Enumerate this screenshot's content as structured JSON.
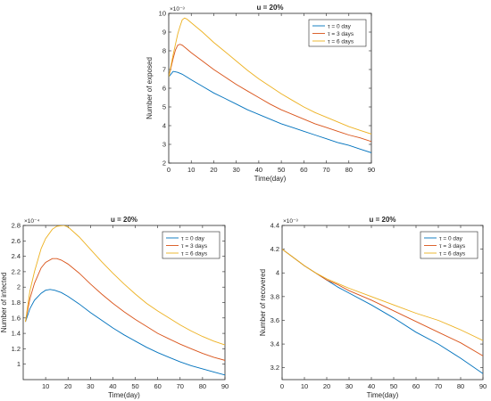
{
  "chart_data": [
    {
      "type": "line",
      "title": "u = 20%",
      "xlabel": "Time(day)",
      "ylabel": "Number of exposed",
      "exponent": "×10⁻³",
      "xlim": [
        0,
        90
      ],
      "ylim": [
        2,
        10
      ],
      "xticks": [
        "0",
        "10",
        "20",
        "30",
        "40",
        "50",
        "60",
        "70",
        "80",
        "90"
      ],
      "yticks": [
        "2",
        "3",
        "4",
        "5",
        "6",
        "7",
        "8",
        "9",
        "10"
      ],
      "legend_position": "top-right",
      "series": [
        {
          "name": "τ = 0 day",
          "color": "#0072BD",
          "x": [
            0,
            2,
            4,
            6,
            8,
            10,
            15,
            20,
            25,
            30,
            35,
            40,
            45,
            50,
            55,
            60,
            65,
            70,
            75,
            80,
            85,
            90
          ],
          "y": [
            6.6,
            6.9,
            6.85,
            6.75,
            6.6,
            6.45,
            6.1,
            5.75,
            5.45,
            5.15,
            4.85,
            4.6,
            4.35,
            4.1,
            3.9,
            3.7,
            3.5,
            3.3,
            3.1,
            2.95,
            2.75,
            2.55
          ]
        },
        {
          "name": "τ = 3 days",
          "color": "#D95319",
          "x": [
            0,
            2,
            3,
            4,
            5,
            6,
            8,
            10,
            15,
            20,
            25,
            30,
            35,
            40,
            45,
            50,
            55,
            60,
            65,
            70,
            75,
            80,
            85,
            90
          ],
          "y": [
            6.6,
            7.6,
            8.05,
            8.3,
            8.35,
            8.3,
            8.1,
            7.9,
            7.45,
            7.0,
            6.6,
            6.2,
            5.85,
            5.5,
            5.15,
            4.85,
            4.6,
            4.35,
            4.1,
            3.9,
            3.7,
            3.5,
            3.35,
            3.15
          ]
        },
        {
          "name": "τ = 6 days",
          "color": "#EDB120",
          "x": [
            0,
            2,
            4,
            5,
            6,
            7,
            8,
            10,
            15,
            20,
            25,
            30,
            35,
            40,
            45,
            50,
            55,
            60,
            65,
            70,
            75,
            80,
            85,
            90
          ],
          "y": [
            6.6,
            7.8,
            8.9,
            9.3,
            9.65,
            9.75,
            9.7,
            9.5,
            9.0,
            8.45,
            7.95,
            7.45,
            6.95,
            6.5,
            6.1,
            5.7,
            5.35,
            5.0,
            4.7,
            4.45,
            4.2,
            3.95,
            3.75,
            3.55
          ]
        }
      ]
    },
    {
      "type": "line",
      "title": "u = 20%",
      "xlabel": "Time(day)",
      "ylabel": "Number of infected",
      "exponent": "×10⁻⁴",
      "xlim": [
        0,
        90
      ],
      "ylim": [
        0.8,
        2.8
      ],
      "xticks": [
        "10",
        "20",
        "30",
        "40",
        "50",
        "60",
        "70",
        "80",
        "90"
      ],
      "yticks": [
        "1",
        "1.2",
        "1.4",
        "1.6",
        "1.8",
        "2",
        "2.2",
        "2.4",
        "2.6",
        "2.8"
      ],
      "legend_position": "top-right",
      "series": [
        {
          "name": "τ = 0 day",
          "color": "#0072BD",
          "x": [
            1,
            3,
            5,
            8,
            10,
            12,
            14,
            17,
            20,
            25,
            30,
            35,
            40,
            45,
            50,
            55,
            60,
            65,
            70,
            75,
            80,
            85,
            90
          ],
          "y": [
            1.55,
            1.72,
            1.83,
            1.92,
            1.96,
            1.97,
            1.96,
            1.93,
            1.88,
            1.78,
            1.67,
            1.57,
            1.47,
            1.38,
            1.3,
            1.22,
            1.15,
            1.09,
            1.03,
            0.98,
            0.94,
            0.9,
            0.86
          ]
        },
        {
          "name": "τ = 3 days",
          "color": "#D95319",
          "x": [
            1,
            3,
            5,
            8,
            10,
            13,
            15,
            17,
            20,
            25,
            30,
            35,
            40,
            45,
            50,
            55,
            60,
            65,
            70,
            75,
            80,
            85,
            90
          ],
          "y": [
            1.55,
            1.85,
            2.05,
            2.25,
            2.32,
            2.37,
            2.37,
            2.35,
            2.3,
            2.18,
            2.04,
            1.91,
            1.79,
            1.68,
            1.58,
            1.49,
            1.4,
            1.33,
            1.26,
            1.2,
            1.14,
            1.09,
            1.05
          ]
        },
        {
          "name": "τ = 6 days",
          "color": "#EDB120",
          "x": [
            1,
            3,
            5,
            8,
            10,
            13,
            15,
            18,
            20,
            25,
            30,
            35,
            40,
            45,
            50,
            55,
            60,
            65,
            70,
            75,
            80,
            85,
            90
          ],
          "y": [
            1.55,
            1.95,
            2.2,
            2.5,
            2.63,
            2.75,
            2.79,
            2.8,
            2.78,
            2.65,
            2.49,
            2.33,
            2.18,
            2.04,
            1.91,
            1.79,
            1.69,
            1.6,
            1.51,
            1.43,
            1.36,
            1.3,
            1.25
          ]
        }
      ]
    },
    {
      "type": "line",
      "title": "u = 20%",
      "xlabel": "Time(day)",
      "ylabel": "Number of recovered",
      "exponent": "×10⁻³",
      "xlim": [
        0,
        90
      ],
      "ylim": [
        3.1,
        4.4
      ],
      "xticks": [
        "0",
        "10",
        "20",
        "30",
        "40",
        "50",
        "60",
        "70",
        "80",
        "90"
      ],
      "yticks": [
        "3.2",
        "3.4",
        "3.6",
        "3.8",
        "4",
        "4.2",
        "4.4"
      ],
      "legend_position": "top-right",
      "series": [
        {
          "name": "τ = 0 day",
          "color": "#0072BD",
          "x": [
            0,
            5,
            10,
            15,
            20,
            25,
            30,
            40,
            50,
            60,
            70,
            80,
            90
          ],
          "y": [
            4.2,
            4.13,
            4.06,
            4.0,
            3.94,
            3.88,
            3.83,
            3.73,
            3.62,
            3.5,
            3.4,
            3.28,
            3.15
          ]
        },
        {
          "name": "τ = 3 days",
          "color": "#D95319",
          "x": [
            0,
            5,
            10,
            15,
            20,
            25,
            30,
            40,
            50,
            60,
            70,
            80,
            90
          ],
          "y": [
            4.2,
            4.13,
            4.06,
            4.0,
            3.94,
            3.9,
            3.85,
            3.77,
            3.68,
            3.59,
            3.5,
            3.41,
            3.3
          ]
        },
        {
          "name": "τ = 6 days",
          "color": "#EDB120",
          "x": [
            0,
            5,
            10,
            15,
            20,
            25,
            30,
            40,
            50,
            60,
            70,
            80,
            90
          ],
          "y": [
            4.2,
            4.13,
            4.06,
            4.0,
            3.95,
            3.91,
            3.87,
            3.8,
            3.73,
            3.66,
            3.6,
            3.52,
            3.43
          ]
        }
      ]
    }
  ]
}
